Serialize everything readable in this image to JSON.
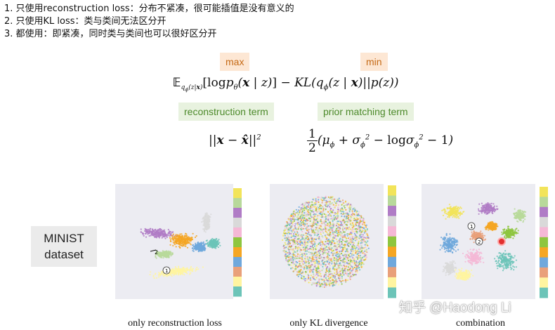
{
  "notes": [
    "1. 只使用reconstruction loss：分布不紧凑，很可能插值是没有意义的",
    "2. 只使用KL loss：类与类间无法区分开",
    "3. 都使用：即紧凑，同时类与类间也可以很好区分开"
  ],
  "tags": {
    "max": "max",
    "min": "min",
    "reconstruction": "reconstruction term",
    "prior": "prior matching term"
  },
  "dataset_label": "MINIST dataset",
  "captions": {
    "recon": "only reconstruction loss",
    "kl": "only KL divergence",
    "combo": "combination"
  },
  "plot_annotations": [
    "2",
    "1",
    "1",
    "2"
  ],
  "watermark": "知乎 @Haodong Li",
  "colors": {
    "palette": [
      "#f2e45a",
      "#b8d99b",
      "#b07cc6",
      "#d9d9d9",
      "#f5b8d6",
      "#8ec63f",
      "#f5a623",
      "#6fa8dc",
      "#e9a07a",
      "#fff4a0",
      "#6cc4b8"
    ],
    "tag_orange_bg": "#fde7d4",
    "tag_green_bg": "#e8f2df"
  }
}
